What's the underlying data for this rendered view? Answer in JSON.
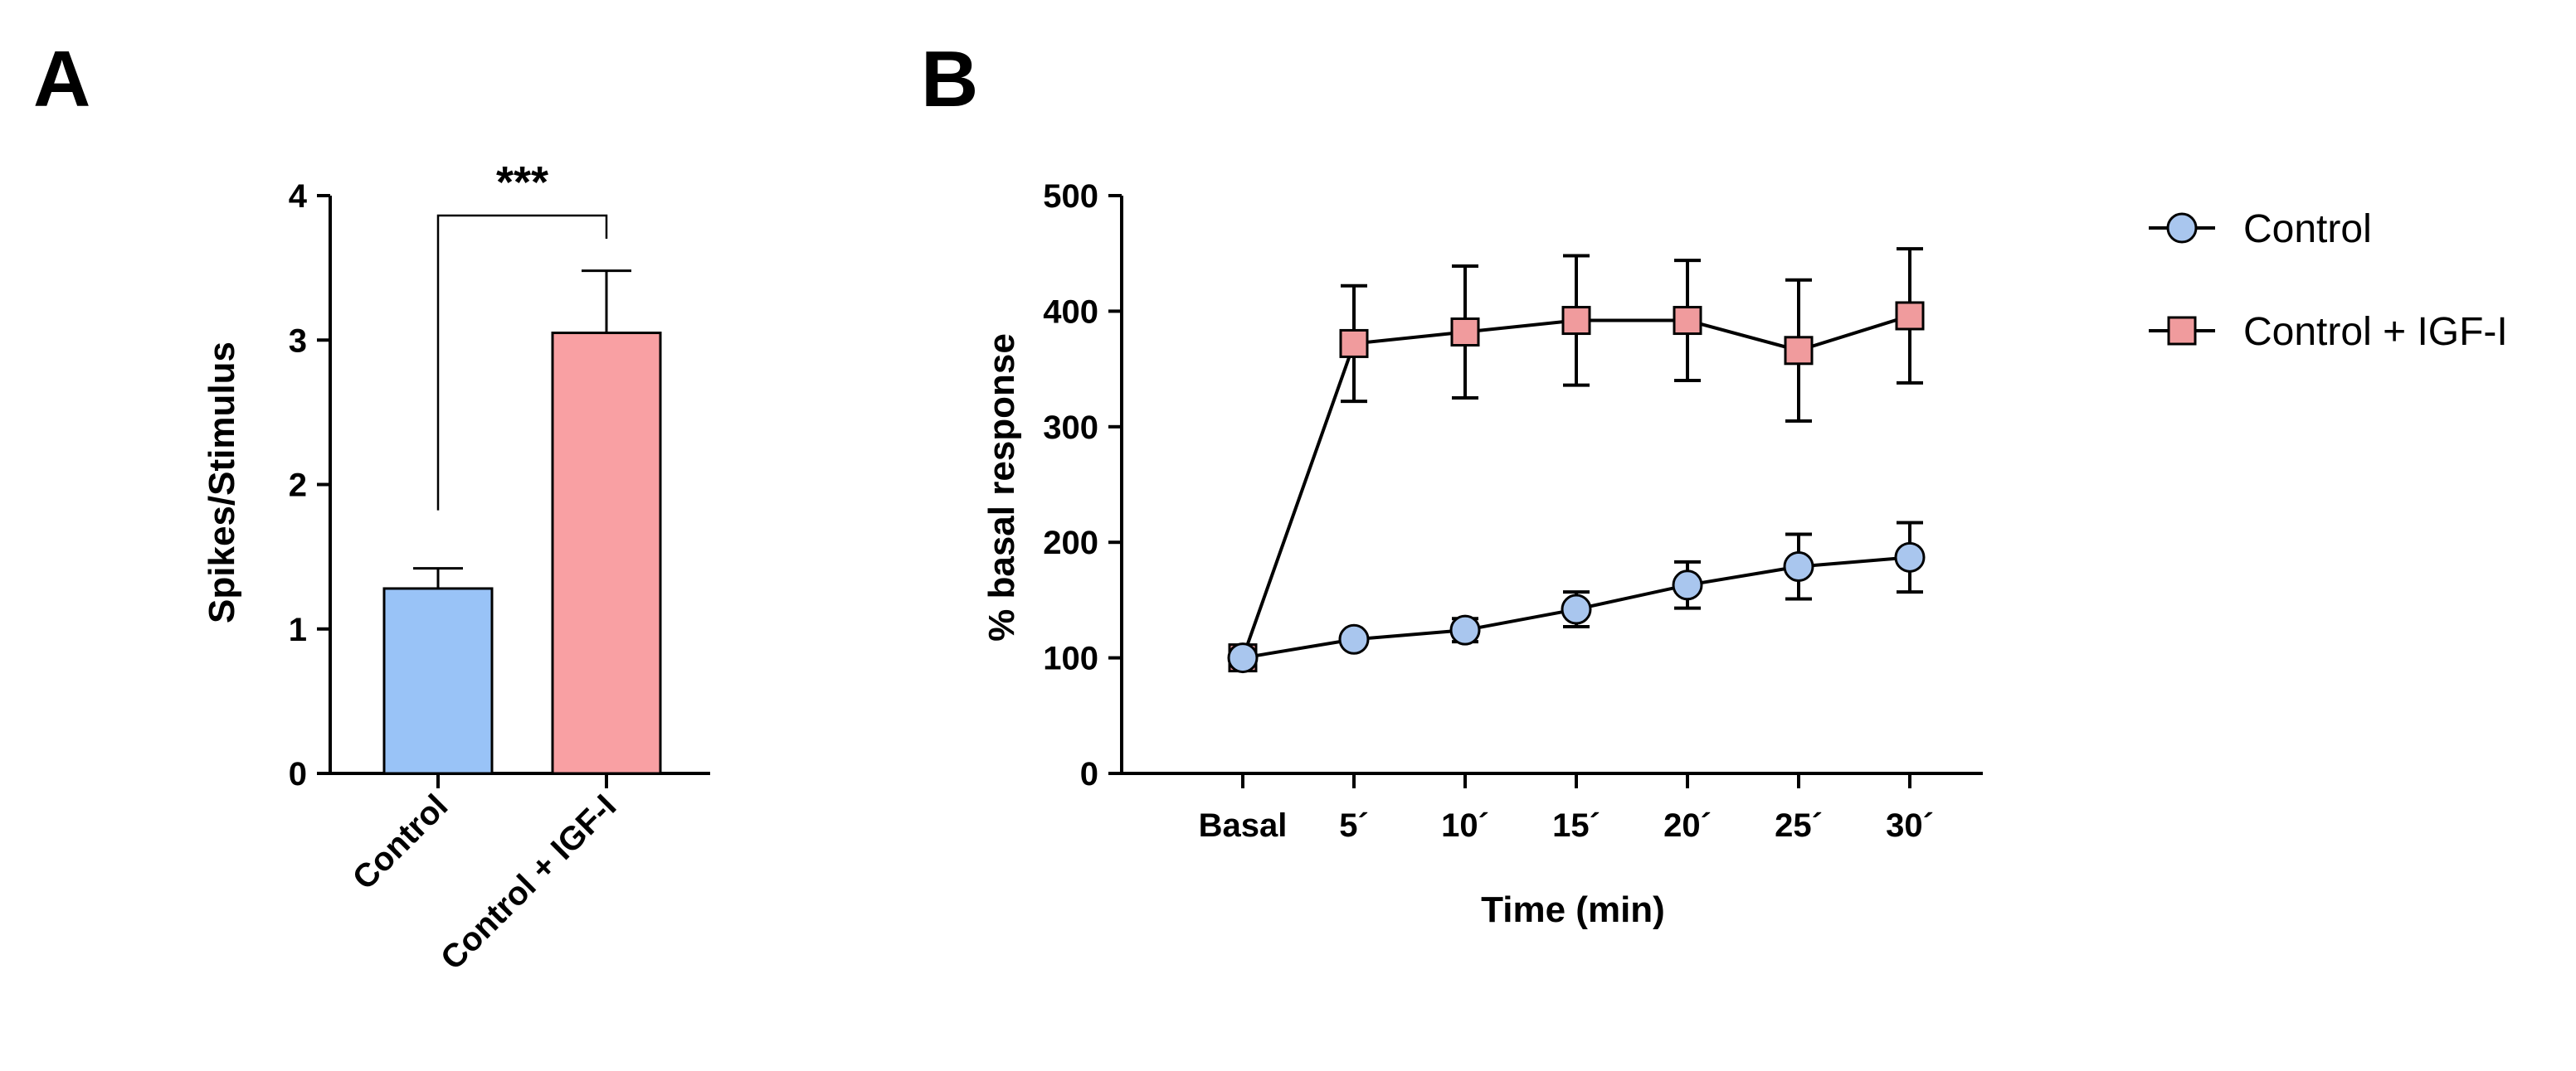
{
  "panels": {
    "a": "A",
    "b": "B"
  },
  "chart_data": [
    {
      "id": "A",
      "type": "bar",
      "ylabel": "Spikes/Stimulus",
      "ylim": [
        0,
        4
      ],
      "yticks": [
        "0",
        "1",
        "2",
        "3",
        "4"
      ],
      "categories": [
        "Control",
        "Control + IGF-I"
      ],
      "values": [
        1.28,
        3.05
      ],
      "errors": [
        0.14,
        0.43
      ],
      "colors": [
        "#99c3f7",
        "#f9a0a3"
      ],
      "significance": {
        "label": "***",
        "between": [
          0,
          1
        ]
      }
    },
    {
      "id": "B",
      "type": "line",
      "xlabel": "Time (min)",
      "ylabel": "% basal response",
      "ylim": [
        0,
        500
      ],
      "yticks": [
        "0",
        "100",
        "200",
        "300",
        "400",
        "500"
      ],
      "categories": [
        "Basal",
        "5´",
        "10´",
        "15´",
        "20´",
        "25´",
        "30´"
      ],
      "legend_position": "right",
      "series": [
        {
          "name": "Control",
          "marker": "circle",
          "color": "#a9c6ee",
          "values": [
            100,
            116,
            124,
            142,
            163,
            179,
            187
          ],
          "errors": [
            0,
            5,
            10,
            15,
            20,
            28,
            30
          ]
        },
        {
          "name": "Control + IGF-I",
          "marker": "square",
          "color": "#f09b9d",
          "values": [
            100,
            372,
            382,
            392,
            392,
            366,
            396
          ],
          "errors": [
            0,
            50,
            57,
            56,
            52,
            61,
            58
          ]
        }
      ]
    }
  ]
}
